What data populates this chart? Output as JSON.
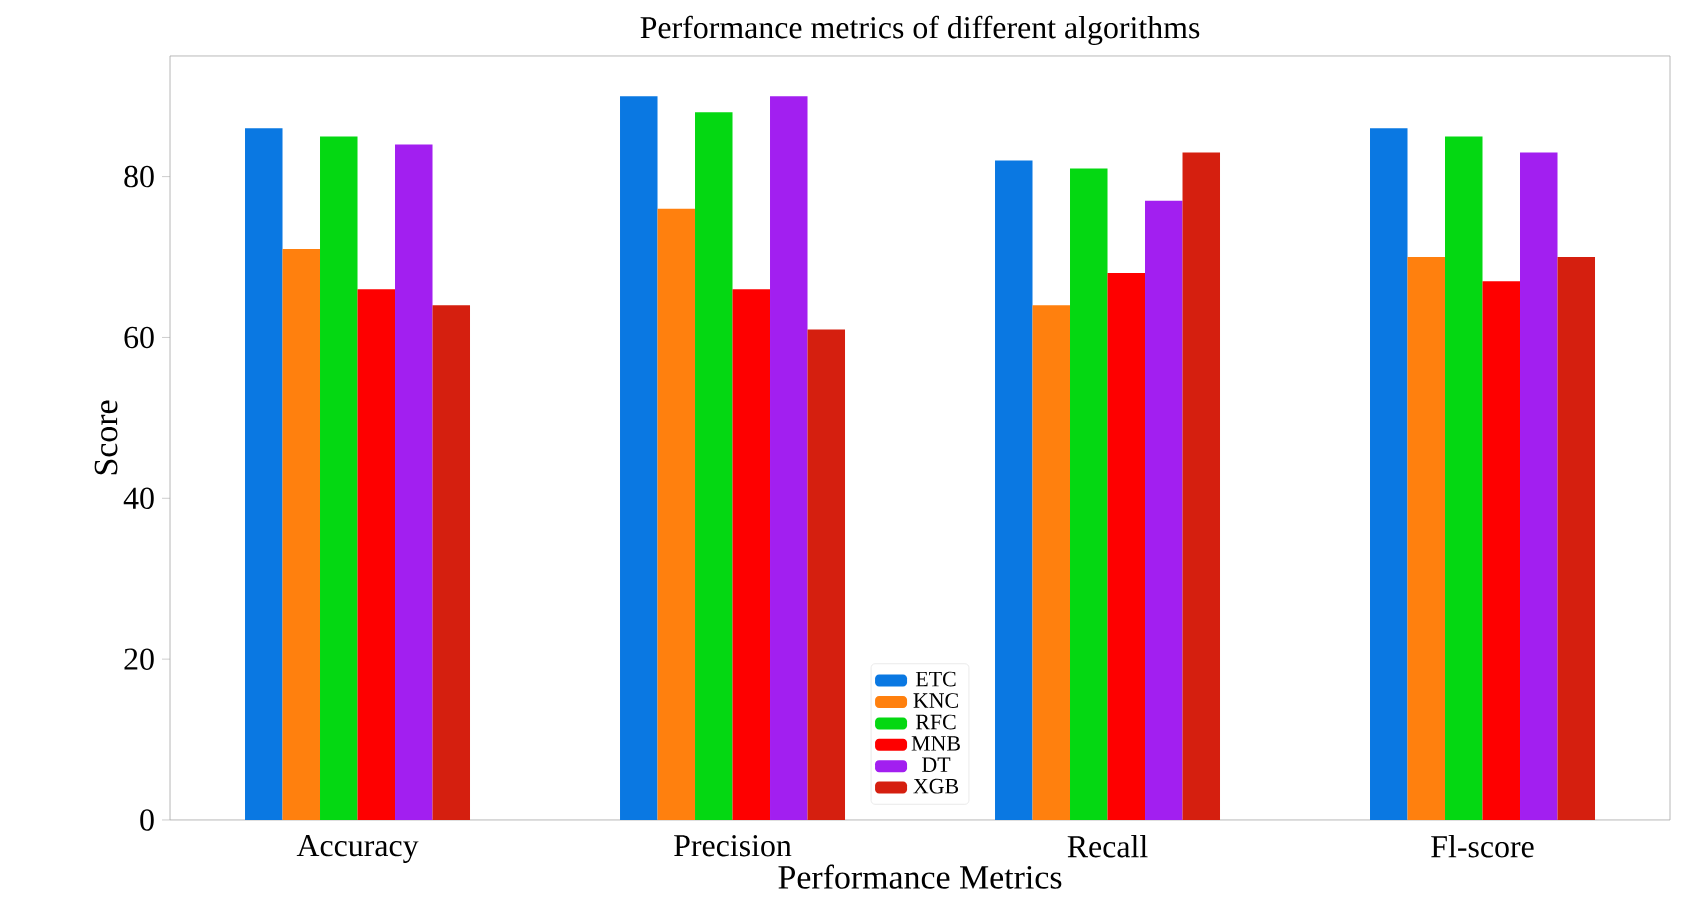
{
  "chart_data": {
    "type": "bar",
    "title": "Performance metrics of different algorithms",
    "xlabel": "Performance Metrics",
    "ylabel": "Score",
    "categories": [
      "Accuracy",
      "Precision",
      "Recall",
      "Fl-score"
    ],
    "series": [
      {
        "name": "ETC",
        "color": "#0a78e2",
        "values": [
          86,
          90,
          82,
          86
        ]
      },
      {
        "name": "KNC",
        "color": "#ff800e",
        "values": [
          71,
          76,
          64,
          70
        ]
      },
      {
        "name": "RFC",
        "color": "#04d812",
        "values": [
          85,
          88,
          81,
          85
        ]
      },
      {
        "name": "MNB",
        "color": "#fe0000",
        "values": [
          66,
          66,
          68,
          67
        ]
      },
      {
        "name": "DT",
        "color": "#a21ff0",
        "values": [
          84,
          90,
          77,
          83
        ]
      },
      {
        "name": "XGB",
        "color": "#d51f0f",
        "values": [
          64,
          61,
          83,
          70
        ]
      }
    ],
    "ylim": [
      0,
      95
    ],
    "yticks": [
      0,
      20,
      40,
      60,
      80
    ],
    "grid": false,
    "legend": "bottom"
  }
}
